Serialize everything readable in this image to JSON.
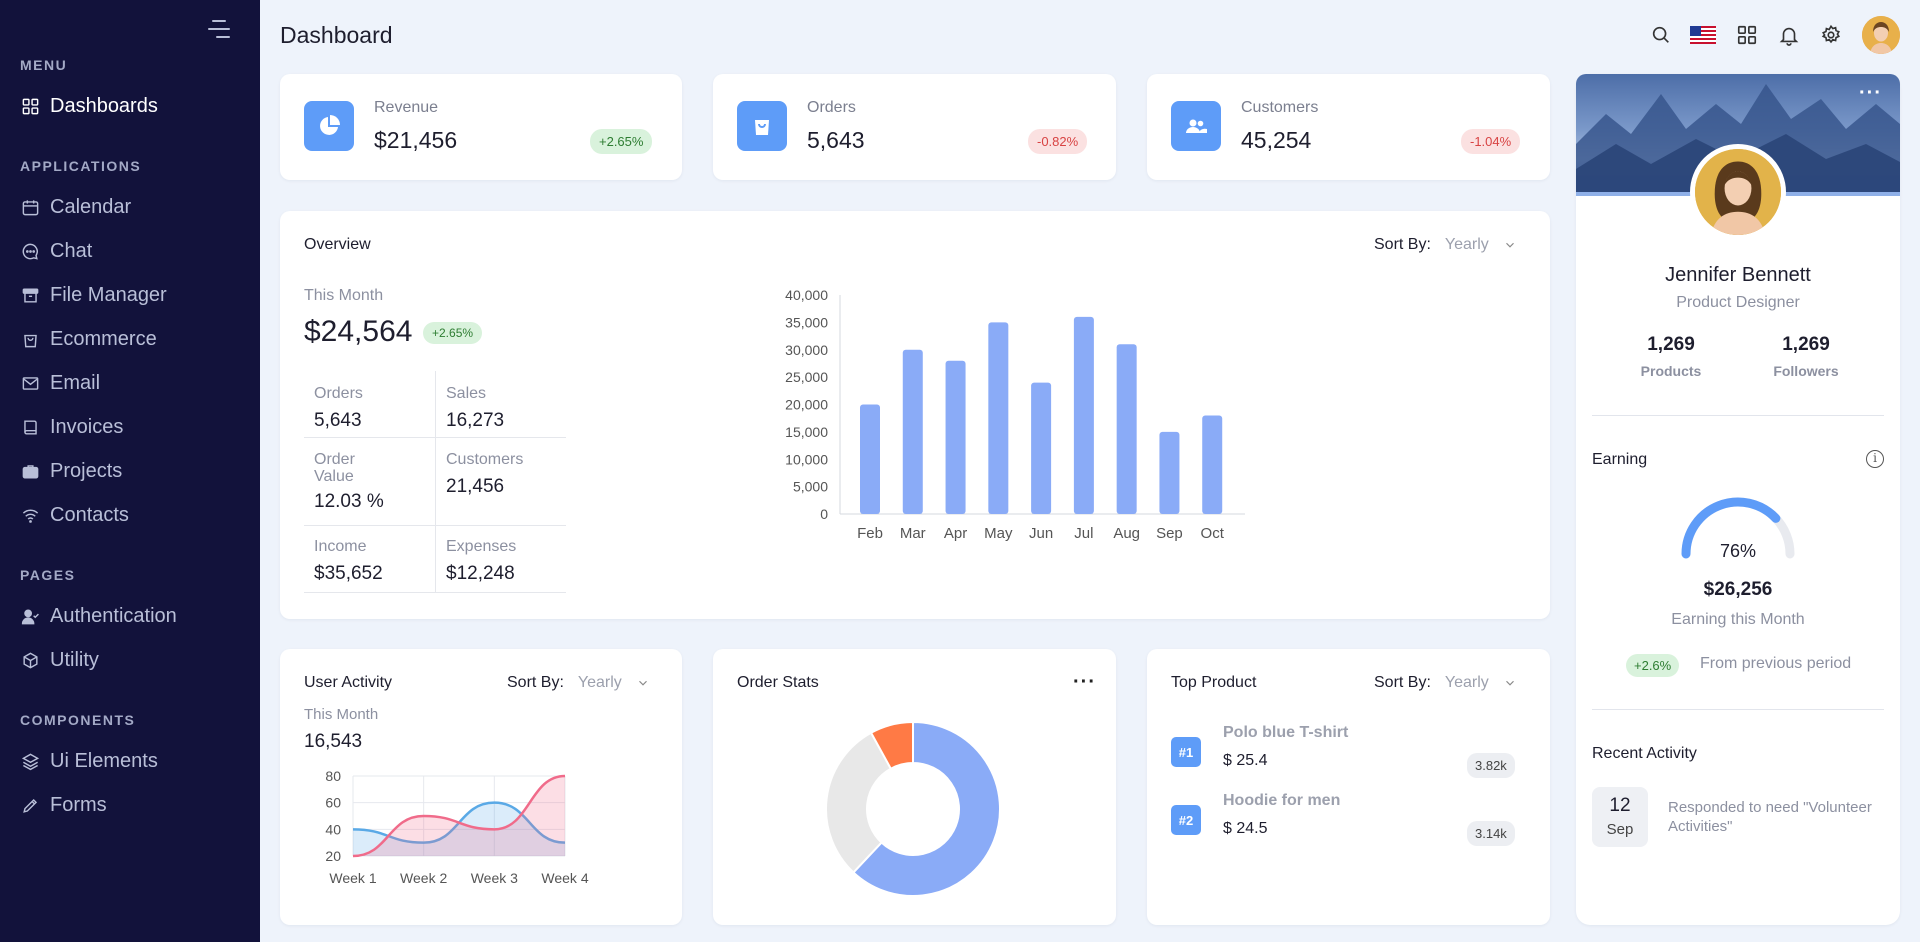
{
  "sidebar": {
    "sections": {
      "menu": "MENU",
      "applications": "APPLICATIONS",
      "pages": "PAGES",
      "components": "COMPONENTS"
    },
    "items": {
      "dashboards": "Dashboards",
      "calendar": "Calendar",
      "chat": "Chat",
      "file_manager": "File Manager",
      "ecommerce": "Ecommerce",
      "email": "Email",
      "invoices": "Invoices",
      "projects": "Projects",
      "contacts": "Contacts",
      "authentication": "Authentication",
      "utility": "Utility",
      "ui_elements": "Ui Elements",
      "forms": "Forms"
    }
  },
  "header": {
    "title": "Dashboard"
  },
  "stats": {
    "revenue": {
      "label": "Revenue",
      "value": "$21,456",
      "change": "+2.65%"
    },
    "orders": {
      "label": "Orders",
      "value": "5,643",
      "change": "-0.82%"
    },
    "customers": {
      "label": "Customers",
      "value": "45,254",
      "change": "-1.04%"
    }
  },
  "overview": {
    "title": "Overview",
    "sort_label": "Sort By:",
    "sort_value": "Yearly",
    "this_month_label": "This Month",
    "this_month_value": "$24,564",
    "this_month_change": "+2.65%",
    "metrics": {
      "orders": {
        "label": "Orders",
        "value": "5,643"
      },
      "sales": {
        "label": "Sales",
        "value": "16,273"
      },
      "order_value": {
        "label": "Order Value",
        "value": "12.03 %"
      },
      "customers": {
        "label": "Customers",
        "value": "21,456"
      },
      "income": {
        "label": "Income",
        "value": "$35,652"
      },
      "expenses": {
        "label": "Expenses",
        "value": "$12,248"
      }
    }
  },
  "user_activity": {
    "title": "User Activity",
    "sort_label": "Sort By:",
    "sort_value": "Yearly",
    "this_month_label": "This Month",
    "this_month_value": "16,543"
  },
  "order_stats": {
    "title": "Order Stats"
  },
  "top_product": {
    "title": "Top Product",
    "sort_label": "Sort By:",
    "sort_value": "Yearly",
    "items": [
      {
        "rank": "#1",
        "name": "Polo blue T-shirt",
        "price": "$ 25.4",
        "count": "3.82k"
      },
      {
        "rank": "#2",
        "name": "Hoodie for men",
        "price": "$ 24.5",
        "count": "3.14k"
      }
    ]
  },
  "profile": {
    "name": "Jennifer Bennett",
    "role": "Product Designer",
    "products_value": "1,269",
    "products_label": "Products",
    "followers_value": "1,269",
    "followers_label": "Followers",
    "earning_title": "Earning",
    "gauge_percent": "76%",
    "gauge_fraction": 0.76,
    "earning_value": "$26,256",
    "earning_label": "Earning this Month",
    "earning_change": "+2.6%",
    "earning_change_label": "From previous period",
    "recent_title": "Recent Activity",
    "recent_day": "12",
    "recent_month": "Sep",
    "recent_text": "Responded to need \"Volunteer Activities\""
  },
  "colors": {
    "sidebar_bg": "#12123b",
    "accent": "#5e9cf8",
    "bar": "#8aabf7",
    "donut_blue": "#8aabf7",
    "donut_gray": "#e8e8e8",
    "donut_orange": "#ff7a45",
    "line_blue": "#5aa9e6",
    "line_pink": "#f06b8a"
  },
  "chart_data": [
    {
      "type": "bar",
      "categories": [
        "Feb",
        "Mar",
        "Apr",
        "May",
        "Jun",
        "Jul",
        "Aug",
        "Sep",
        "Oct"
      ],
      "values": [
        20000,
        30000,
        28000,
        35000,
        24000,
        36000,
        31000,
        15000,
        18000
      ],
      "ytick_labels": [
        "0",
        "5,000",
        "10,000",
        "15,000",
        "20,000",
        "25,000",
        "30,000",
        "35,000",
        "40,000"
      ],
      "ylim": [
        0,
        40000
      ]
    },
    {
      "type": "area",
      "categories": [
        "Week 1",
        "Week 2",
        "Week 3",
        "Week 4"
      ],
      "ytick_labels": [
        "20",
        "40",
        "60",
        "80"
      ],
      "ylim": [
        20,
        80
      ],
      "series": [
        {
          "values": [
            40,
            30,
            60,
            30
          ]
        },
        {
          "values": [
            20,
            50,
            40,
            80
          ]
        }
      ]
    },
    {
      "type": "pie",
      "values": [
        62,
        30,
        8
      ]
    }
  ]
}
